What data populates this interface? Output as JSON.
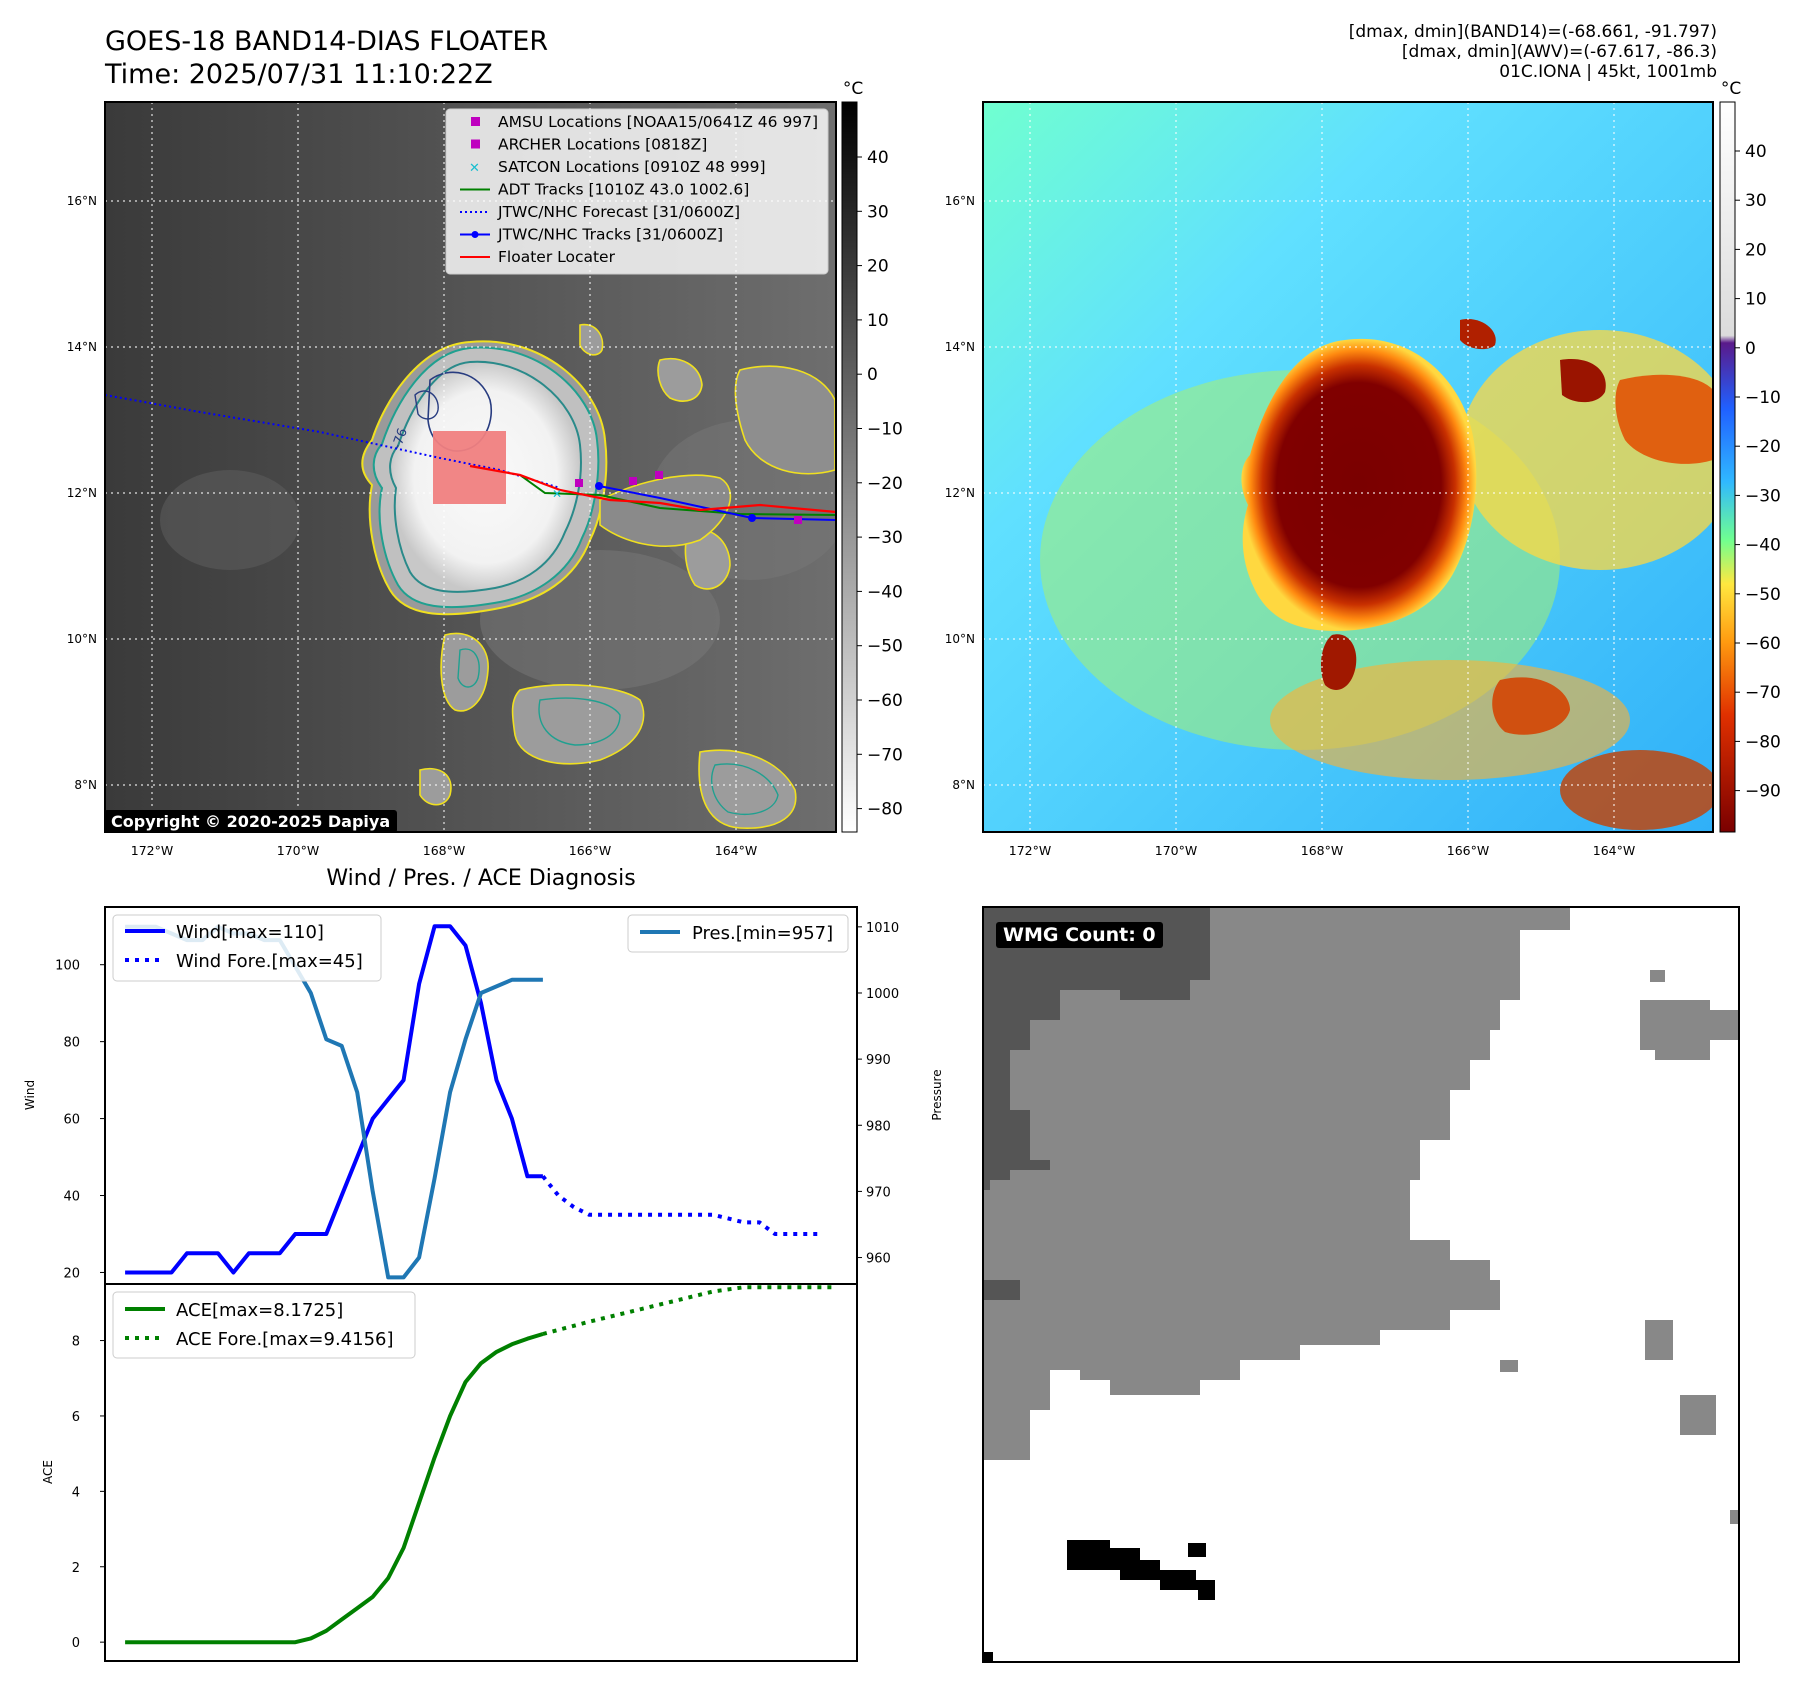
{
  "header": {
    "title_line1": "GOES-18 BAND14-DIAS FLOATER",
    "title_line2": "Time: 2025/07/31 11:10:22Z",
    "info_line1": "[dmax, dmin](BAND14)=(-68.661, -91.797)",
    "info_line2": "[dmax, dmin](AWV)=(-67.617, -86.3)",
    "info_line3": "01C.IONA | 45kt, 1001mb"
  },
  "map_axes": {
    "lon_ticks": [
      "172°W",
      "170°W",
      "168°W",
      "166°W",
      "164°W"
    ],
    "lat_ticks": [
      "16°N",
      "14°N",
      "12°N",
      "10°N",
      "8°N"
    ]
  },
  "ir_panel": {
    "copyright": "Copyright © 2020-2025 Dapiya",
    "contour_label": "-76",
    "colorbar_unit": "°C",
    "colorbar_ticks": [
      "40",
      "30",
      "20",
      "10",
      "0",
      "−10",
      "−20",
      "−30",
      "−40",
      "−50",
      "−60",
      "−70",
      "−80"
    ],
    "legend": [
      {
        "label": "AMSU Locations [NOAA15/0641Z 46 997]",
        "color": "#bf00bf",
        "symbol": "square"
      },
      {
        "label": "ARCHER Locations [0818Z]",
        "color": "#bf00bf",
        "symbol": "square"
      },
      {
        "label": "SATCON Locations [0910Z 48 999]",
        "color": "#17becf",
        "symbol": "x"
      },
      {
        "label": "ADT Tracks [1010Z 43.0 1002.6]",
        "color": "#008000",
        "symbol": "line"
      },
      {
        "label": "JTWC/NHC Forecast [31/0600Z]",
        "color": "#0000ff",
        "symbol": "dotted"
      },
      {
        "label": "JTWC/NHC Tracks [31/0600Z]",
        "color": "#0000ff",
        "symbol": "line-dot"
      },
      {
        "label": "Floater Locater",
        "color": "#ff0000",
        "symbol": "line"
      }
    ]
  },
  "wv_panel": {
    "colorbar_unit": "°C",
    "colorbar_ticks": [
      "40",
      "30",
      "20",
      "10",
      "0",
      "−10",
      "−20",
      "−30",
      "−40",
      "−50",
      "−60",
      "−70",
      "−80",
      "−90"
    ]
  },
  "wmg_panel": {
    "badge": "WMG Count: 0"
  },
  "colors": {
    "wind": "#0000ff",
    "pressure": "#1f77b4",
    "ace": "#008000",
    "floater": "#ff0000",
    "amsu": "#bf00bf"
  },
  "chart_data": [
    {
      "type": "line",
      "title": "Wind / Pres. / ACE Diagnosis",
      "ylabel": "Wind",
      "y2label": "Pressure",
      "ylim": [
        17,
        115
      ],
      "y2lim": [
        956,
        1013
      ],
      "yticks": [
        20,
        40,
        60,
        80,
        100
      ],
      "y2ticks": [
        960,
        970,
        980,
        990,
        1000,
        1010
      ],
      "series": [
        {
          "name": "Wind[max=110]",
          "style": "solid",
          "axis": "left",
          "x": [
            0,
            1,
            2,
            3,
            4,
            5,
            6,
            7,
            8,
            9,
            10,
            11,
            12,
            13,
            14,
            15,
            16,
            17,
            18,
            19,
            20,
            21,
            22,
            23,
            24,
            25,
            26,
            27
          ],
          "values": [
            20,
            20,
            20,
            20,
            25,
            25,
            25,
            20,
            25,
            25,
            25,
            30,
            30,
            30,
            40,
            50,
            60,
            65,
            70,
            95,
            110,
            110,
            105,
            90,
            70,
            60,
            45,
            45
          ]
        },
        {
          "name": "Wind Fore.[max=45]",
          "style": "dotted",
          "axis": "left",
          "x": [
            27,
            28,
            29,
            30,
            32,
            34,
            36,
            37,
            38,
            40,
            41,
            42,
            43,
            44,
            45
          ],
          "values": [
            45,
            40,
            37,
            35,
            35,
            35,
            35,
            35,
            35,
            33,
            33,
            30,
            30,
            30,
            30
          ]
        },
        {
          "name": "Pres.[min=957]",
          "style": "solid",
          "axis": "right",
          "x": [
            0,
            1,
            2,
            3,
            4,
            5,
            6,
            7,
            8,
            9,
            10,
            11,
            12,
            13,
            14,
            15,
            16,
            17,
            18,
            19,
            20,
            21,
            22,
            23,
            24,
            25,
            26,
            27
          ],
          "values": [
            1010,
            1010,
            1010,
            1009,
            1008,
            1008,
            1010,
            1009,
            1009,
            1008,
            1008,
            1004,
            1000,
            993,
            992,
            985,
            970,
            957,
            957,
            960,
            972,
            985,
            993,
            1000,
            1001,
            1002,
            1002,
            1002
          ]
        }
      ]
    },
    {
      "type": "line",
      "ylabel": "ACE",
      "ylim": [
        -0.5,
        9.5
      ],
      "yticks": [
        0,
        2,
        4,
        6,
        8
      ],
      "series": [
        {
          "name": "ACE[max=8.1725]",
          "style": "solid",
          "x": [
            0,
            2,
            4,
            6,
            8,
            10,
            11,
            12,
            13,
            14,
            15,
            16,
            17,
            18,
            19,
            20,
            21,
            22,
            23,
            24,
            25,
            26,
            27
          ],
          "values": [
            0,
            0,
            0,
            0,
            0,
            0,
            0,
            0.1,
            0.3,
            0.6,
            0.9,
            1.2,
            1.7,
            2.5,
            3.7,
            4.9,
            6.0,
            6.9,
            7.4,
            7.7,
            7.9,
            8.05,
            8.1725
          ]
        },
        {
          "name": "ACE Fore.[max=9.4156]",
          "style": "dotted",
          "x": [
            27,
            30,
            33,
            36,
            38,
            40,
            42,
            44,
            46
          ],
          "values": [
            8.1725,
            8.5,
            8.8,
            9.1,
            9.3,
            9.4156,
            9.4156,
            9.4156,
            9.4156
          ]
        }
      ]
    }
  ]
}
